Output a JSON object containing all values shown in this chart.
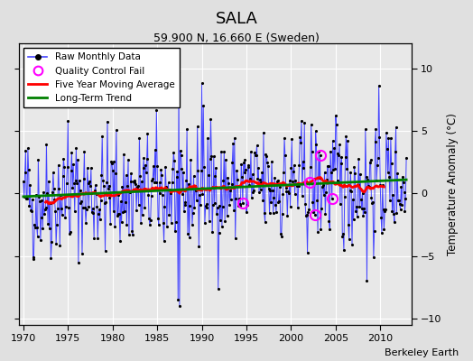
{
  "title": "SALA",
  "subtitle": "59.900 N, 16.660 E (Sweden)",
  "ylabel": "Temperature Anomaly (°C)",
  "attribution": "Berkeley Earth",
  "xlim": [
    1969.5,
    2013.5
  ],
  "ylim": [
    -10.5,
    12
  ],
  "yticks": [
    -10,
    -5,
    0,
    5,
    10
  ],
  "xticks": [
    1970,
    1975,
    1980,
    1985,
    1990,
    1995,
    2000,
    2005,
    2010
  ],
  "outer_bg": "#e0e0e0",
  "plot_bg": "#e8e8e8",
  "grid_color": "white",
  "raw_line_color": "#4444ff",
  "moving_avg_color": "red",
  "trend_color": "green",
  "qc_fail_color": "magenta",
  "seed": 42,
  "n_months": 516,
  "noise_amplitude": 3.0,
  "qc_fail_indices": [
    295,
    385,
    392,
    399,
    415
  ]
}
